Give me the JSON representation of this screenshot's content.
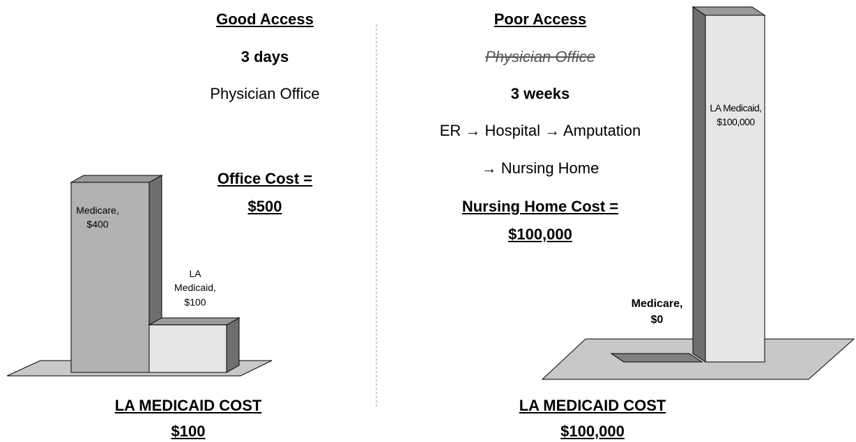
{
  "left": {
    "heading": "Good Access",
    "time": "3 days",
    "path": "Physician Office",
    "cost_label": "Office Cost =",
    "cost_value": "$500",
    "footer_title": "LA MEDICAID COST",
    "footer_value": "$100"
  },
  "right": {
    "heading": "Poor Access",
    "struck": "Physician Office",
    "time": "3 weeks",
    "path_1": "ER → Hospital → Amputation",
    "path_2": "→ Nursing Home",
    "cost_label": "Nursing Home Cost =",
    "cost_value": "$100,000",
    "footer_title": "LA MEDICAID COST",
    "footer_value": "$100,000"
  },
  "chart_data": [
    {
      "type": "bar3d",
      "values": [
        400,
        100
      ],
      "value_labels": [
        "Medicare, $400",
        "LA Medicaid, $100"
      ],
      "colors": [
        "#b2b2b2",
        "#e6e6e6"
      ],
      "ylim": [
        0,
        400
      ]
    },
    {
      "type": "bar3d",
      "values": [
        0,
        100000
      ],
      "value_labels": [
        "Medicare, $0",
        "LA Medicaid, $100,000"
      ],
      "colors": [
        "#808080",
        "#e6e6e6"
      ],
      "ylim": [
        0,
        100000
      ]
    }
  ]
}
